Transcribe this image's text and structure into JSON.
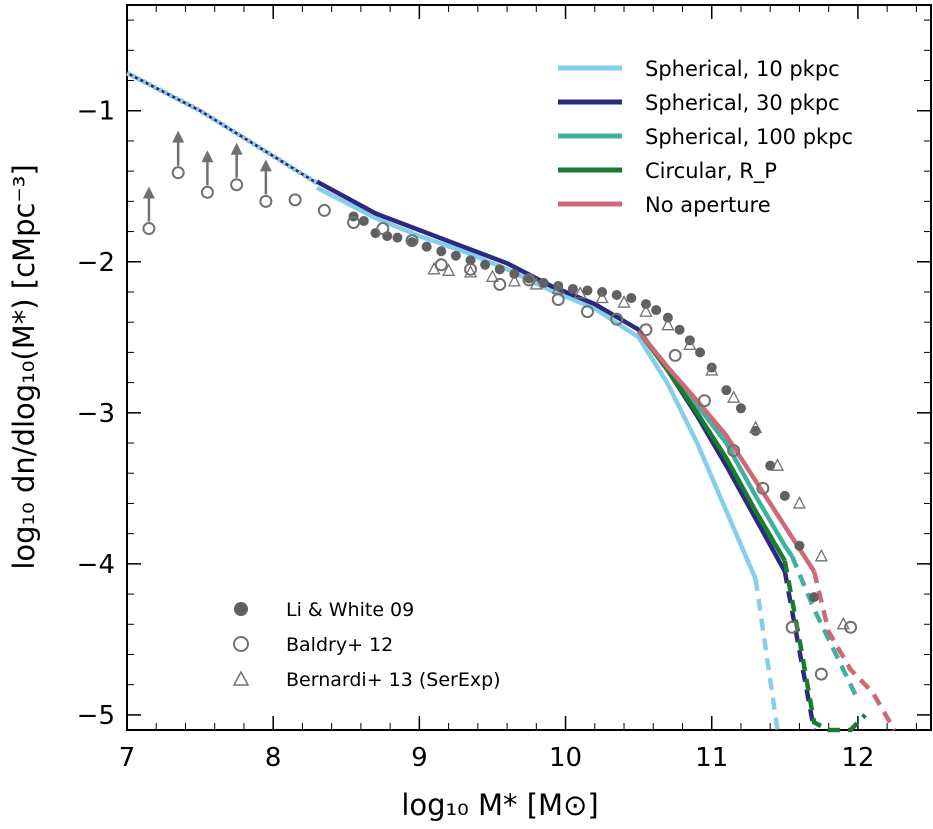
{
  "chart_data": {
    "type": "line",
    "xlabel": "log₁₀ M* [M⊙]",
    "ylabel": "log₁₀ dn/dlog₁₀(M*) [cMpc⁻³]",
    "xlim": [
      7,
      12.5
    ],
    "ylim": [
      -5.1,
      -0.3
    ],
    "xticks": [
      7,
      8,
      9,
      10,
      11,
      12
    ],
    "yticks": [
      -1,
      -2,
      -3,
      -4,
      -5
    ],
    "xtick_labels": [
      "7",
      "8",
      "9",
      "10",
      "11",
      "12"
    ],
    "ytick_labels": [
      "−1",
      "−2",
      "−3",
      "−4",
      "−5"
    ],
    "legend_position": "top-right",
    "series": [
      {
        "name": "Spherical, 10 pkpc",
        "color": "#87ceeb",
        "x": [
          8.3,
          8.7,
          9.0,
          9.3,
          9.6,
          9.9,
          10.2,
          10.5,
          10.7,
          10.9,
          11.1,
          11.3
        ],
        "y": [
          -1.51,
          -1.71,
          -1.83,
          -1.93,
          -2.05,
          -2.19,
          -2.31,
          -2.5,
          -2.81,
          -3.2,
          -3.65,
          -4.1
        ],
        "dashed_x": [
          11.3,
          11.45
        ],
        "dashed_y": [
          -4.1,
          -5.1
        ]
      },
      {
        "name": "Spherical, 30 pkpc",
        "color": "#2a2a80",
        "x": [
          8.3,
          8.7,
          9.0,
          9.3,
          9.6,
          9.9,
          10.2,
          10.5,
          10.7,
          10.9,
          11.1,
          11.3,
          11.5
        ],
        "y": [
          -1.47,
          -1.68,
          -1.79,
          -1.9,
          -2.01,
          -2.16,
          -2.28,
          -2.45,
          -2.72,
          -3.02,
          -3.35,
          -3.7,
          -4.05
        ],
        "dashed_x": [
          11.5,
          11.7
        ],
        "dashed_y": [
          -4.05,
          -5.1
        ]
      },
      {
        "name": "Spherical, 100 pkpc",
        "color": "#40b0a0",
        "x": [
          10.5,
          10.7,
          10.9,
          11.1,
          11.3,
          11.5,
          11.55
        ],
        "y": [
          -2.46,
          -2.7,
          -2.95,
          -3.2,
          -3.55,
          -3.88,
          -3.95
        ],
        "dashed_x": [
          11.55,
          11.7,
          11.85,
          12.0
        ],
        "dashed_y": [
          -3.95,
          -4.3,
          -4.6,
          -4.9
        ]
      },
      {
        "name": "Circular, R_P",
        "color": "#1a7a30",
        "x": [
          10.5,
          10.7,
          10.9,
          11.1,
          11.3,
          11.5
        ],
        "y": [
          -2.46,
          -2.72,
          -3.0,
          -3.3,
          -3.65,
          -3.98
        ],
        "dashed_x": [
          11.5,
          11.6,
          11.7,
          11.8,
          11.95,
          12.05
        ],
        "dashed_y": [
          -3.98,
          -4.5,
          -5.05,
          -5.1,
          -5.1,
          -5.0
        ]
      },
      {
        "name": "No aperture",
        "color": "#d06878",
        "x": [
          10.5,
          10.7,
          10.9,
          11.1,
          11.3,
          11.5,
          11.7
        ],
        "y": [
          -2.46,
          -2.7,
          -2.92,
          -3.15,
          -3.45,
          -3.75,
          -4.05
        ],
        "dashed_x": [
          11.7,
          11.8,
          11.95,
          12.1,
          12.25
        ],
        "dashed_y": [
          -4.05,
          -4.45,
          -4.7,
          -4.85,
          -5.1
        ]
      }
    ],
    "extrapolation": {
      "x": [
        7.0,
        7.5,
        8.0,
        8.3
      ],
      "y": [
        -0.75,
        -1.0,
        -1.3,
        -1.48
      ]
    },
    "observations": [
      {
        "name": "Li & White 09",
        "marker": "filled-circle",
        "x": [
          8.55,
          8.62,
          8.7,
          8.78,
          8.85,
          8.95,
          9.05,
          9.15,
          9.25,
          9.35,
          9.45,
          9.55,
          9.65,
          9.75,
          9.85,
          9.95,
          10.05,
          10.15,
          10.25,
          10.35,
          10.45,
          10.55,
          10.62,
          10.7,
          10.78,
          10.85,
          10.92,
          11.0,
          11.1,
          11.2,
          11.3,
          11.4,
          11.5,
          11.6,
          11.7
        ],
        "y": [
          -1.7,
          -1.73,
          -1.81,
          -1.83,
          -1.84,
          -1.87,
          -1.9,
          -1.93,
          -1.96,
          -1.99,
          -2.02,
          -2.05,
          -2.08,
          -2.11,
          -2.14,
          -2.16,
          -2.18,
          -2.19,
          -2.2,
          -2.22,
          -2.24,
          -2.28,
          -2.32,
          -2.37,
          -2.45,
          -2.52,
          -2.6,
          -2.7,
          -2.85,
          -2.97,
          -3.12,
          -3.35,
          -3.55,
          -3.88,
          -4.22
        ]
      },
      {
        "name": "Baldry+ 12",
        "marker": "open-circle",
        "x": [
          7.15,
          7.35,
          7.55,
          7.75,
          7.95,
          8.15,
          8.35,
          8.55,
          8.75,
          8.95,
          9.15,
          9.35,
          9.55,
          9.75,
          9.95,
          10.15,
          10.35,
          10.55,
          10.75,
          10.95,
          11.15,
          11.35,
          11.55,
          11.75,
          11.95
        ],
        "y": [
          -1.78,
          -1.41,
          -1.54,
          -1.49,
          -1.6,
          -1.59,
          -1.66,
          -1.74,
          -1.78,
          -1.86,
          -2.02,
          -2.05,
          -2.15,
          -2.12,
          -2.25,
          -2.33,
          -2.38,
          -2.45,
          -2.62,
          -2.92,
          -3.25,
          -3.5,
          -4.42,
          -4.73,
          -4.42
        ],
        "lower_limits_x": [
          7.15,
          7.35,
          7.55,
          7.75,
          7.95
        ]
      },
      {
        "name": "Bernardi+ 13 (SerExp)",
        "marker": "open-triangle",
        "x": [
          9.1,
          9.2,
          9.35,
          9.5,
          9.65,
          9.8,
          9.95,
          10.1,
          10.25,
          10.4,
          10.55,
          10.7,
          10.85,
          11.0,
          11.15,
          11.3,
          11.45,
          11.6,
          11.75,
          11.9
        ],
        "y": [
          -2.05,
          -2.06,
          -2.07,
          -2.1,
          -2.13,
          -2.15,
          -2.18,
          -2.21,
          -2.24,
          -2.27,
          -2.33,
          -2.42,
          -2.55,
          -2.72,
          -2.9,
          -3.1,
          -3.35,
          -3.6,
          -3.95,
          -4.4
        ]
      }
    ]
  }
}
